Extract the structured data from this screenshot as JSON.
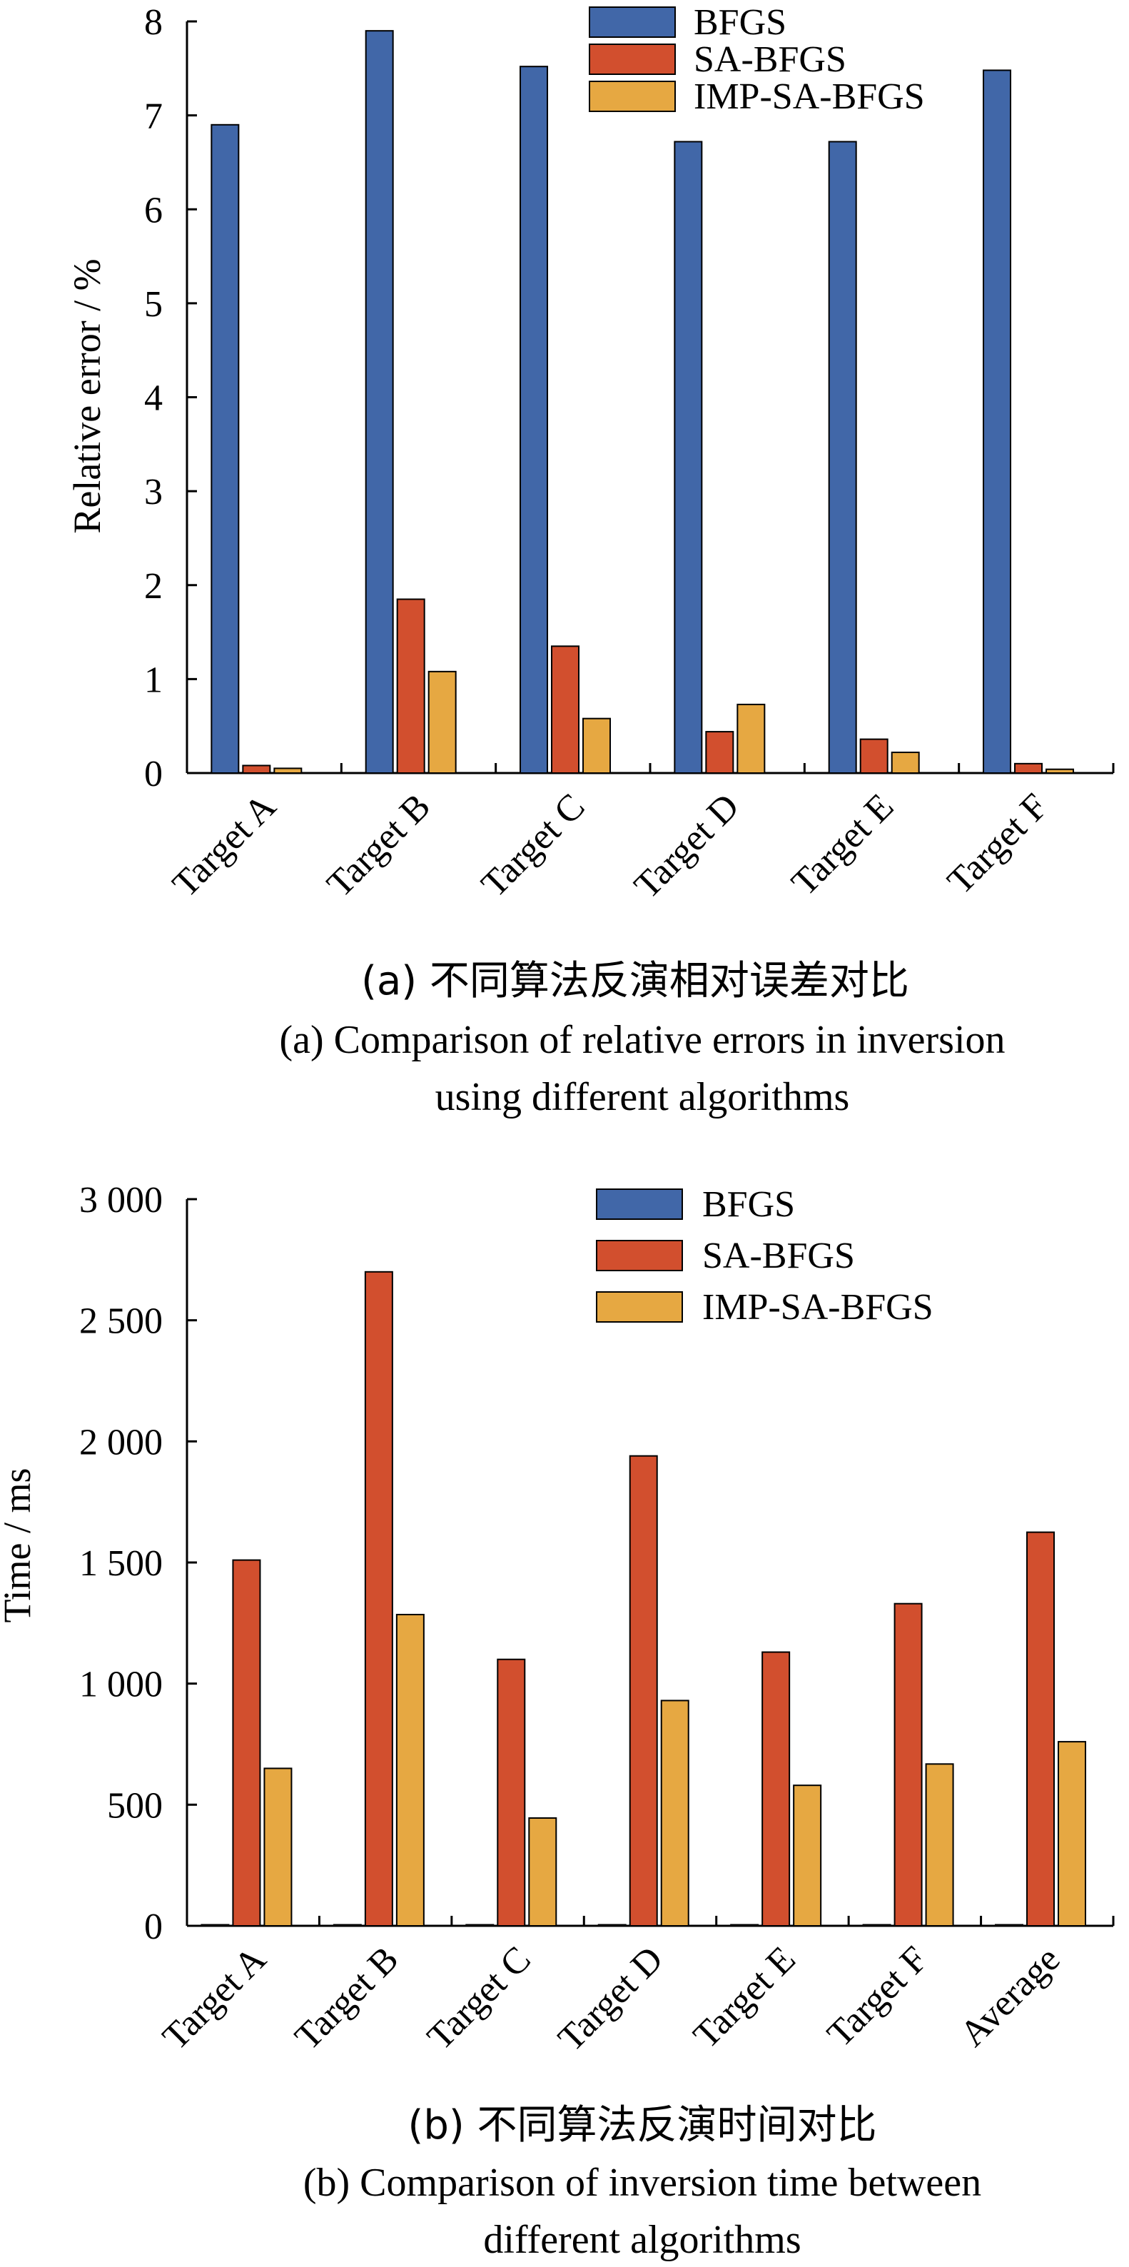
{
  "chart_data": [
    {
      "type": "bar",
      "panel": "a",
      "ylabel": "Relative error / %",
      "ylim": [
        0,
        8
      ],
      "yticks": [
        "0",
        "1",
        "2",
        "3",
        "4",
        "5",
        "6",
        "7",
        "8"
      ],
      "categories": [
        "Target A",
        "Target B",
        "Target C",
        "Target D",
        "Target E",
        "Target F"
      ],
      "series": [
        {
          "name": "BFGS",
          "color": "#4167a8",
          "values": [
            6.9,
            7.9,
            7.52,
            6.72,
            6.72,
            7.48
          ]
        },
        {
          "name": "SA-BFGS",
          "color": "#d24f2e",
          "values": [
            0.08,
            1.85,
            1.35,
            0.44,
            0.36,
            0.1
          ]
        },
        {
          "name": "IMP-SA-BFGS",
          "color": "#e6a842",
          "values": [
            0.05,
            1.08,
            0.58,
            0.73,
            0.22,
            0.04
          ]
        }
      ],
      "legend_position": "top-right",
      "caption_cn": "(a) 不同算法反演相对误差对比",
      "caption_en_line1": "(a) Comparison of relative errors in inversion",
      "caption_en_line2": "using different algorithms"
    },
    {
      "type": "bar",
      "panel": "b",
      "ylabel": "Time / ms",
      "ylim": [
        0,
        3000
      ],
      "yticks": [
        "0",
        "500",
        "1 000",
        "1 500",
        "2 000",
        "2 500",
        "3 000"
      ],
      "categories": [
        "Target A",
        "Target B",
        "Target C",
        "Target D",
        "Target E",
        "Target F",
        "Average"
      ],
      "series": [
        {
          "name": "BFGS",
          "color": "#4167a8",
          "values": [
            3,
            3,
            3,
            3,
            3,
            3,
            3
          ]
        },
        {
          "name": "SA-BFGS",
          "color": "#d24f2e",
          "values": [
            1510,
            2700,
            1100,
            1940,
            1130,
            1330,
            1625
          ]
        },
        {
          "name": "IMP-SA-BFGS",
          "color": "#e6a842",
          "values": [
            650,
            1285,
            445,
            930,
            580,
            668,
            760
          ]
        }
      ],
      "legend_position": "top-right",
      "caption_cn": "(b) 不同算法反演时间对比",
      "caption_en_line1": "(b) Comparison of inversion time between",
      "caption_en_line2": "different algorithms"
    }
  ]
}
